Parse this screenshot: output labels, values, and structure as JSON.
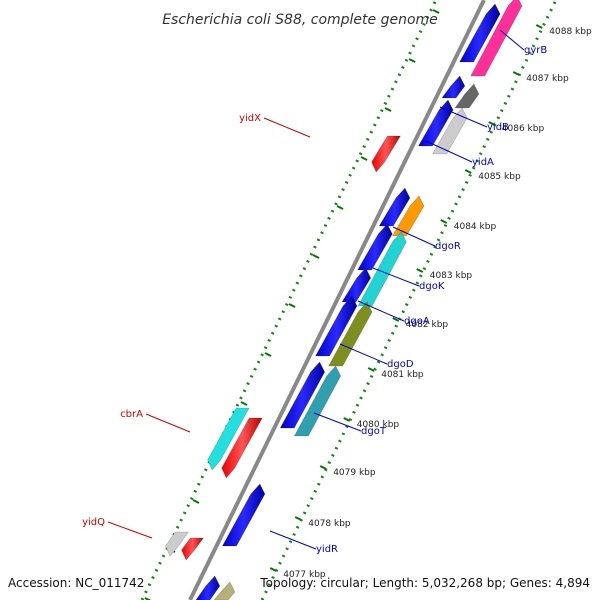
{
  "title": "Escherichia coli S88, complete genome",
  "accession_text": "Accession: NC_011742",
  "summary_text": "Topology: circular; Length: 5,032,268 bp; Genes: 4,894",
  "colors": {
    "forward_gene": "#0000ff",
    "reverse_gene": "#ff0000",
    "backbone": "#888888",
    "dotted_guide": "#118811",
    "tick": "#007700",
    "forward_label": "#0000cc",
    "reverse_label": "#cc0000"
  },
  "ruler": [
    {
      "label": "4088 kbp"
    },
    {
      "label": "4087 kbp"
    },
    {
      "label": "4086 kbp"
    },
    {
      "label": "4085 kbp"
    },
    {
      "label": "4084 kbp"
    },
    {
      "label": "4083 kbp"
    },
    {
      "label": "4082 kbp"
    },
    {
      "label": "4081 kbp"
    },
    {
      "label": "4080 kbp"
    },
    {
      "label": "4079 kbp"
    },
    {
      "label": "4078 kbp"
    },
    {
      "label": "4077 kbp"
    }
  ],
  "forward_labels": [
    "gyrB",
    "yidB",
    "yidA",
    "dgoR",
    "dgoK",
    "dgoA",
    "dgoD",
    "dgoT",
    "yidR"
  ],
  "reverse_labels": [
    "yidX",
    "cbrA",
    "yidQ"
  ]
}
